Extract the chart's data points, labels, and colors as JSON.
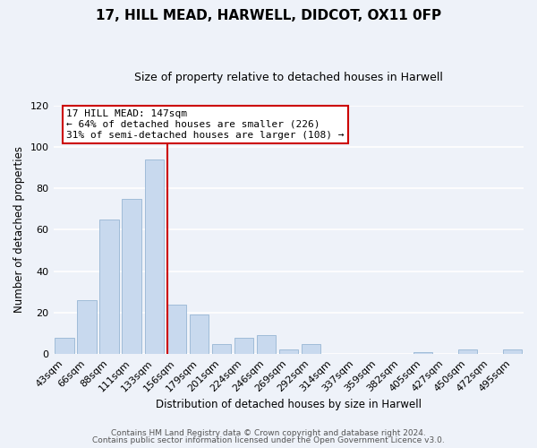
{
  "title": "17, HILL MEAD, HARWELL, DIDCOT, OX11 0FP",
  "subtitle": "Size of property relative to detached houses in Harwell",
  "xlabel": "Distribution of detached houses by size in Harwell",
  "ylabel": "Number of detached properties",
  "bar_color": "#c8d9ee",
  "bar_edge_color": "#a0bcd8",
  "bin_labels": [
    "43sqm",
    "66sqm",
    "88sqm",
    "111sqm",
    "133sqm",
    "156sqm",
    "179sqm",
    "201sqm",
    "224sqm",
    "246sqm",
    "269sqm",
    "292sqm",
    "314sqm",
    "337sqm",
    "359sqm",
    "382sqm",
    "405sqm",
    "427sqm",
    "450sqm",
    "472sqm",
    "495sqm"
  ],
  "bar_heights": [
    8,
    26,
    65,
    75,
    94,
    24,
    19,
    5,
    8,
    9,
    2,
    5,
    0,
    0,
    0,
    0,
    1,
    0,
    2,
    0,
    2
  ],
  "vline_color": "#cc0000",
  "ylim": [
    0,
    120
  ],
  "yticks": [
    0,
    20,
    40,
    60,
    80,
    100,
    120
  ],
  "annotation_title": "17 HILL MEAD: 147sqm",
  "annotation_line1": "← 64% of detached houses are smaller (226)",
  "annotation_line2": "31% of semi-detached houses are larger (108) →",
  "annotation_box_color": "#ffffff",
  "annotation_box_edge": "#cc0000",
  "footer_line1": "Contains HM Land Registry data © Crown copyright and database right 2024.",
  "footer_line2": "Contains public sector information licensed under the Open Government Licence v3.0.",
  "background_color": "#eef2f9",
  "grid_color": "#ffffff"
}
